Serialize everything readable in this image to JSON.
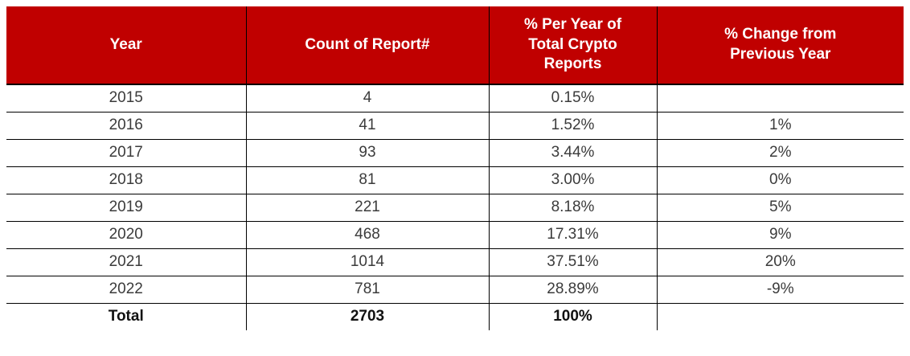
{
  "table": {
    "columns": [
      {
        "label": "Year"
      },
      {
        "label": "Count of Report#"
      },
      {
        "label": "% Per Year of Total Crypto Reports"
      },
      {
        "label": "% Change from Previous Year"
      }
    ],
    "rows": [
      {
        "year": "2015",
        "count": "4",
        "pct_of_total": "0.15%",
        "pct_change": ""
      },
      {
        "year": "2016",
        "count": "41",
        "pct_of_total": "1.52%",
        "pct_change": "1%"
      },
      {
        "year": "2017",
        "count": "93",
        "pct_of_total": "3.44%",
        "pct_change": "2%"
      },
      {
        "year": "2018",
        "count": "81",
        "pct_of_total": "3.00%",
        "pct_change": "0%"
      },
      {
        "year": "2019",
        "count": "221",
        "pct_of_total": "8.18%",
        "pct_change": "5%"
      },
      {
        "year": "2020",
        "count": "468",
        "pct_of_total": "17.31%",
        "pct_change": "9%"
      },
      {
        "year": "2021",
        "count": "1014",
        "pct_of_total": "37.51%",
        "pct_change": "20%"
      },
      {
        "year": "2022",
        "count": "781",
        "pct_of_total": "28.89%",
        "pct_change": "-9%"
      }
    ],
    "total_row": {
      "year": "Total",
      "count": "2703",
      "pct_of_total": "100%",
      "pct_change": ""
    },
    "colors": {
      "header_bg": "#c00000",
      "header_text": "#ffffff",
      "border": "#000000",
      "body_text": "#3b3b3b"
    }
  },
  "chart_data": {
    "type": "table",
    "columns": [
      "Year",
      "Count of Report#",
      "% Per Year of Total Crypto Reports",
      "% Change from Previous Year"
    ],
    "rows": [
      [
        "2015",
        4,
        "0.15%",
        ""
      ],
      [
        "2016",
        41,
        "1.52%",
        "1%"
      ],
      [
        "2017",
        93,
        "3.44%",
        "2%"
      ],
      [
        "2018",
        81,
        "3.00%",
        "0%"
      ],
      [
        "2019",
        221,
        "8.18%",
        "5%"
      ],
      [
        "2020",
        468,
        "17.31%",
        "9%"
      ],
      [
        "2021",
        1014,
        "37.51%",
        "20%"
      ],
      [
        "2022",
        781,
        "28.89%",
        "-9%"
      ],
      [
        "Total",
        2703,
        "100%",
        ""
      ]
    ],
    "title": "",
    "layout": {
      "header_fill": "#c00000",
      "header_text_color": "#ffffff",
      "grid": "horizontal-and-vertical-inner"
    }
  }
}
